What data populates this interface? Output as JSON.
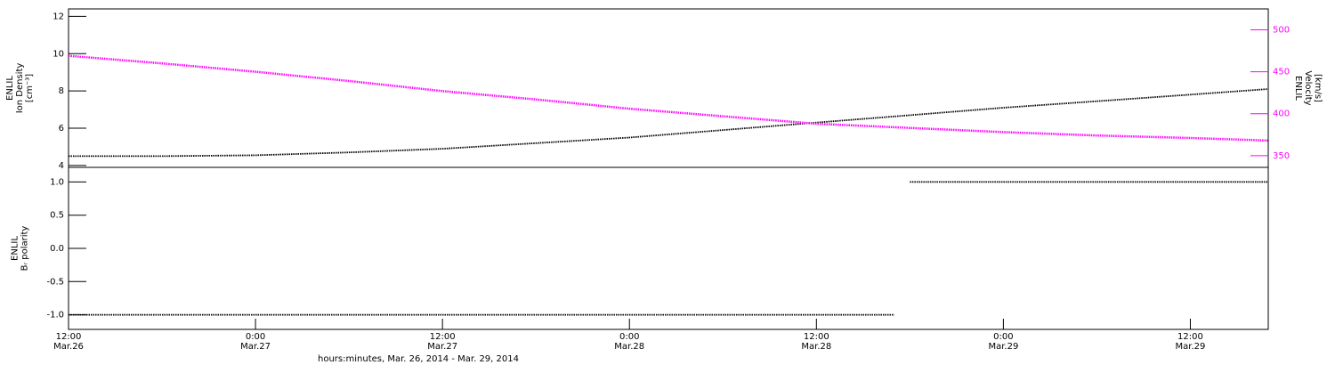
{
  "chart_data": [
    {
      "type": "line",
      "ylabel": [
        "ENLIL",
        "Ion Density",
        "[cm⁻³]"
      ],
      "y2label": [
        "ENLIL",
        "Velocity",
        "[km/s]"
      ],
      "x": [
        "2014-03-26 12:00",
        "2014-03-26 18:00",
        "2014-03-27 00:00",
        "2014-03-27 06:00",
        "2014-03-27 12:00",
        "2014-03-27 18:00",
        "2014-03-28 00:00",
        "2014-03-28 06:00",
        "2014-03-28 12:00",
        "2014-03-28 18:00",
        "2014-03-29 00:00",
        "2014-03-29 06:00",
        "2014-03-29 12:00",
        "2014-03-29 17:00"
      ],
      "xlim": [
        "2014-03-26 12:00",
        "2014-03-29 17:00"
      ],
      "ylim": [
        3.9,
        12.4
      ],
      "yticks": [
        4,
        6,
        8,
        10,
        12
      ],
      "y2lim": [
        336,
        525
      ],
      "y2ticks": [
        350,
        400,
        450,
        500
      ],
      "series": [
        {
          "name": "Ion Density",
          "color": "#000000",
          "values": [
            4.5,
            4.5,
            4.55,
            4.7,
            4.9,
            5.2,
            5.5,
            5.9,
            6.3,
            6.7,
            7.1,
            7.45,
            7.8,
            8.1
          ]
        },
        {
          "name": "Velocity",
          "color": "#ff00ff",
          "axis": "y2",
          "values": [
            469,
            460,
            450,
            439,
            427,
            417,
            406,
            397,
            388,
            383,
            378,
            374,
            371,
            368
          ]
        }
      ]
    },
    {
      "type": "line",
      "ylabel": [
        "ENLIL",
        "Bᵣ polarity"
      ],
      "xlabel": "hours:minutes, Mar. 26, 2014 - Mar. 29, 2014",
      "x": [
        "2014-03-26 12:00",
        "2014-03-27 00:00",
        "2014-03-27 12:00",
        "2014-03-28 00:00",
        "2014-03-28 12:00",
        "2014-03-28 17:00",
        "2014-03-28 17:30",
        "2014-03-28 18:00",
        "2014-03-29 00:00",
        "2014-03-29 12:00",
        "2014-03-29 17:00"
      ],
      "xlim": [
        "2014-03-26 12:00",
        "2014-03-29 17:00"
      ],
      "xticks": [
        {
          "value": "2014-03-26 12:00",
          "label": "12:00",
          "sublabel": "Mar.26"
        },
        {
          "value": "2014-03-27 00:00",
          "label": "0:00",
          "sublabel": "Mar.27"
        },
        {
          "value": "2014-03-27 12:00",
          "label": "12:00",
          "sublabel": "Mar.27"
        },
        {
          "value": "2014-03-28 00:00",
          "label": "0:00",
          "sublabel": "Mar.28"
        },
        {
          "value": "2014-03-28 12:00",
          "label": "12:00",
          "sublabel": "Mar.28"
        },
        {
          "value": "2014-03-29 00:00",
          "label": "0:00",
          "sublabel": "Mar.29"
        },
        {
          "value": "2014-03-29 12:00",
          "label": "12:00",
          "sublabel": "Mar.29"
        }
      ],
      "ylim": [
        -1.22,
        1.22
      ],
      "yticks": [
        {
          "value": -1,
          "label": "-1.0"
        },
        {
          "value": -0.5,
          "label": "-0.5"
        },
        {
          "value": 0,
          "label": "0.0"
        },
        {
          "value": 0.5,
          "label": "0.5"
        },
        {
          "value": 1,
          "label": "1.0"
        }
      ],
      "series": [
        {
          "name": "Br polarity",
          "color": "#000000",
          "values": [
            -1,
            -1,
            -1,
            -1,
            -1,
            -1,
            null,
            1,
            1,
            1,
            1
          ]
        }
      ]
    }
  ]
}
